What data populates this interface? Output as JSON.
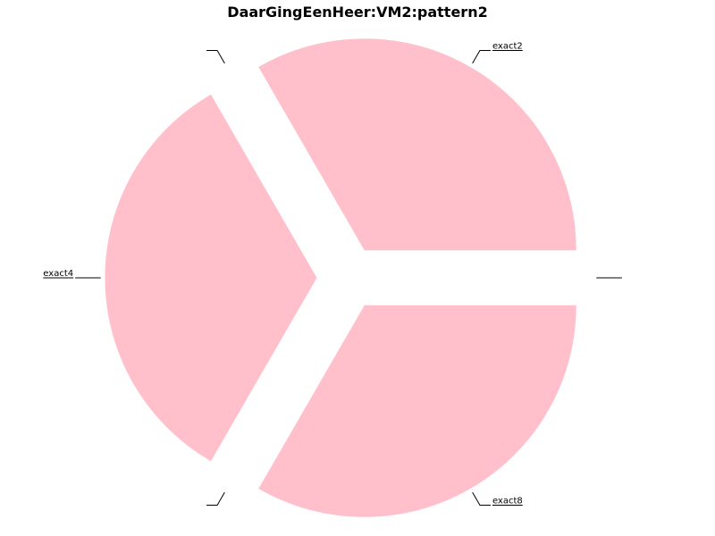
{
  "chart_data": {
    "type": "pie",
    "title": "DaarGingEenHeer:VM2:pattern2",
    "slices": [
      {
        "label": "exact2",
        "value": 1
      },
      {
        "label": "",
        "value": 0
      },
      {
        "label": "exact4",
        "value": 1
      },
      {
        "label": "",
        "value": 0
      },
      {
        "label": "exact8",
        "value": 1
      },
      {
        "label": "",
        "value": 0
      }
    ],
    "slice_color": "#ffc0cb",
    "exploded": true
  }
}
